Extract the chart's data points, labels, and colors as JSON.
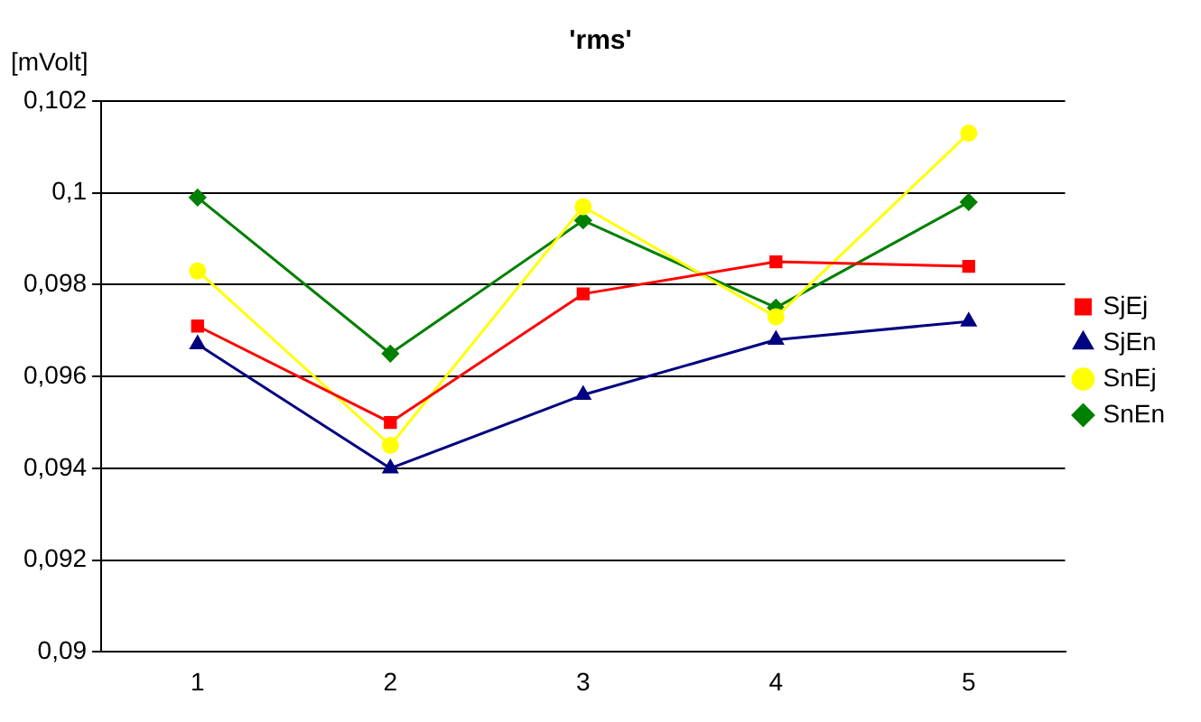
{
  "chart_data": {
    "type": "line",
    "title": "'rms'",
    "ylabel": "[mVolt]",
    "categories": [
      "1",
      "2",
      "3",
      "4",
      "5"
    ],
    "series": [
      {
        "name": "SjEj",
        "color": "#ff0000",
        "marker": "square",
        "values": [
          0.0971,
          0.095,
          0.0978,
          0.0985,
          0.0984
        ]
      },
      {
        "name": "SjEn",
        "color": "#000080",
        "marker": "triangle",
        "values": [
          0.0967,
          0.094,
          0.0956,
          0.0968,
          0.0972
        ]
      },
      {
        "name": "SnEj",
        "color": "#ffff00",
        "marker": "circle",
        "values": [
          0.0983,
          0.0945,
          0.0997,
          0.0973,
          0.1013
        ]
      },
      {
        "name": "SnEn",
        "color": "#008000",
        "marker": "diamond",
        "values": [
          0.0999,
          0.0965,
          0.0994,
          0.0975,
          0.0998
        ]
      }
    ],
    "ylim": [
      0.09,
      0.102
    ],
    "yticks": [
      {
        "value": 0.09,
        "label": "0,09"
      },
      {
        "value": 0.092,
        "label": "0,092"
      },
      {
        "value": 0.094,
        "label": "0,094"
      },
      {
        "value": 0.096,
        "label": "0,096"
      },
      {
        "value": 0.098,
        "label": "0,098"
      },
      {
        "value": 0.1,
        "label": "0,1"
      },
      {
        "value": 0.102,
        "label": "0,102"
      }
    ],
    "grid": "y",
    "legend": "right",
    "line_style": "solid"
  }
}
